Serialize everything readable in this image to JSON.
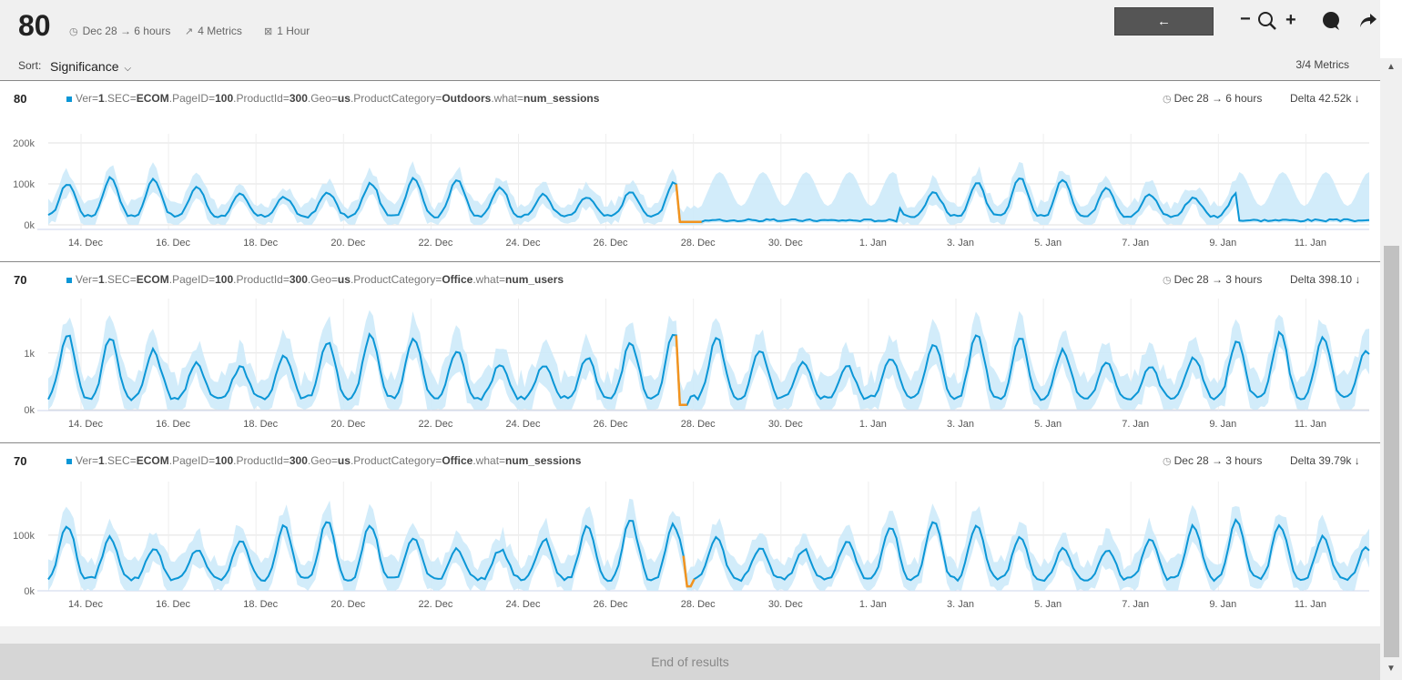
{
  "header": {
    "score": "80",
    "time_range": "Dec 28 → 6 hours",
    "metrics": "4 Metrics",
    "resolution": "1 Hour",
    "back_label": "←",
    "zoom_out": "−",
    "zoom_in": "+",
    "sort_label": "Sort:",
    "sort_value": "Significance",
    "metric_count": "3/4 Metrics"
  },
  "footer": {
    "end_text": "End of results"
  },
  "chart_data": [
    {
      "type": "line",
      "score": "80",
      "legend": {
        "parts": [
          [
            "Ver=",
            false
          ],
          [
            "1",
            true
          ],
          [
            ".SEC=",
            false
          ],
          [
            "ECOM",
            true
          ],
          [
            ".PageID=",
            false
          ],
          [
            "100",
            true
          ],
          [
            ".ProductId=",
            false
          ],
          [
            "300",
            true
          ],
          [
            ".Geo=",
            false
          ],
          [
            "us",
            true
          ],
          [
            ".ProductCategory=",
            false
          ],
          [
            "Outdoors",
            true
          ],
          [
            ".what=",
            false
          ],
          [
            "num_sessions",
            true
          ]
        ]
      },
      "time_range": "Dec 28 → 6 hours",
      "delta": "Delta 42.52k ↓",
      "x_labels": [
        "14. Dec",
        "16. Dec",
        "18. Dec",
        "20. Dec",
        "22. Dec",
        "24. Dec",
        "26. Dec",
        "28. Dec",
        "30. Dec",
        "1. Jan",
        "3. Jan",
        "5. Jan",
        "7. Jan",
        "9. Jan",
        "11. Jan"
      ],
      "y_labels": [
        "200k",
        "100k",
        "0k"
      ],
      "y_values": [
        200000,
        100000,
        0
      ],
      "ylim": [
        0,
        200000
      ],
      "x_range_days": [
        0,
        30.5
      ],
      "anomaly_range_days": [
        14.55,
        15.1
      ],
      "low_range_days": [
        15.1,
        19.6
      ],
      "low_range2_days": [
        27.5,
        30.5
      ],
      "daily_peak": 92000,
      "daily_trough": 30000,
      "band_spread": 30000,
      "colors": {
        "line": "#0b96d6",
        "anomaly": "#f2931e",
        "band": "#cdeaf9"
      }
    },
    {
      "type": "line",
      "score": "70",
      "legend": {
        "parts": [
          [
            "Ver=",
            false
          ],
          [
            "1",
            true
          ],
          [
            ".SEC=",
            false
          ],
          [
            "ECOM",
            true
          ],
          [
            ".PageID=",
            false
          ],
          [
            "100",
            true
          ],
          [
            ".ProductId=",
            false
          ],
          [
            "300",
            true
          ],
          [
            ".Geo=",
            false
          ],
          [
            "us",
            true
          ],
          [
            ".ProductCategory=",
            false
          ],
          [
            "Office",
            true
          ],
          [
            ".what=",
            false
          ],
          [
            "num_users",
            true
          ]
        ]
      },
      "time_range": "Dec 28 → 3 hours",
      "delta": "Delta 398.10 ↓",
      "x_labels": [
        "14. Dec",
        "16. Dec",
        "18. Dec",
        "20. Dec",
        "22. Dec",
        "24. Dec",
        "26. Dec",
        "28. Dec",
        "30. Dec",
        "1. Jan",
        "3. Jan",
        "5. Jan",
        "7. Jan",
        "9. Jan",
        "11. Jan"
      ],
      "y_labels": [
        "1k",
        "0k"
      ],
      "y_values": [
        1000,
        0
      ],
      "ylim": [
        0,
        1800
      ],
      "x_range_days": [
        0,
        30.5
      ],
      "anomaly_range_days": [
        14.55,
        14.75
      ],
      "low_range_days": null,
      "low_range2_days": null,
      "daily_peak": 1050,
      "daily_trough": 300,
      "band_spread": 350,
      "colors": {
        "line": "#0b96d6",
        "anomaly": "#f2931e",
        "band": "#cdeaf9"
      }
    },
    {
      "type": "line",
      "score": "70",
      "legend": {
        "parts": [
          [
            "Ver=",
            false
          ],
          [
            "1",
            true
          ],
          [
            ".SEC=",
            false
          ],
          [
            "ECOM",
            true
          ],
          [
            ".PageID=",
            false
          ],
          [
            "100",
            true
          ],
          [
            ".ProductId=",
            false
          ],
          [
            "300",
            true
          ],
          [
            ".Geo=",
            false
          ],
          [
            "us",
            true
          ],
          [
            ".ProductCategory=",
            false
          ],
          [
            "Office",
            true
          ],
          [
            ".what=",
            false
          ],
          [
            "num_sessions",
            true
          ]
        ]
      },
      "time_range": "Dec 28 → 3 hours",
      "delta": "Delta 39.79k ↓",
      "x_labels": [
        "14. Dec",
        "16. Dec",
        "18. Dec",
        "20. Dec",
        "22. Dec",
        "24. Dec",
        "26. Dec",
        "28. Dec",
        "30. Dec",
        "1. Jan",
        "3. Jan",
        "5. Jan",
        "7. Jan",
        "9. Jan",
        "11. Jan"
      ],
      "y_labels": [
        "100k",
        "0k"
      ],
      "y_values": [
        100000,
        0
      ],
      "ylim": [
        0,
        180000
      ],
      "x_range_days": [
        0,
        30.5
      ],
      "anomaly_range_days": [
        14.7,
        14.9
      ],
      "low_range_days": null,
      "low_range2_days": null,
      "daily_peak": 100000,
      "daily_trough": 30000,
      "band_spread": 30000,
      "colors": {
        "line": "#0b96d6",
        "anomaly": "#f2931e",
        "band": "#cdeaf9"
      }
    }
  ]
}
